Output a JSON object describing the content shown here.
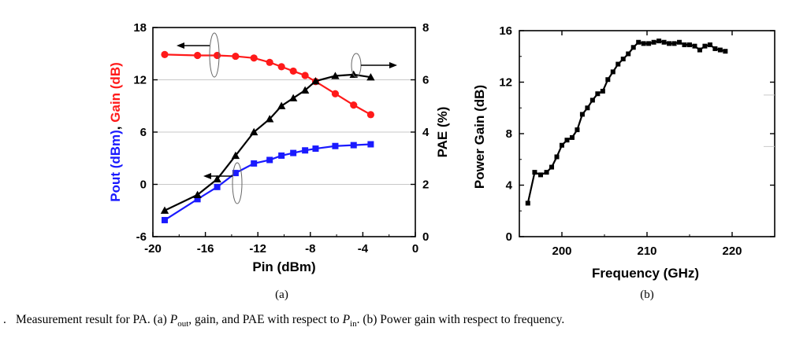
{
  "chart_data": [
    {
      "type": "line",
      "panel_label": "(a)",
      "xlabel": "Pin (dBm)",
      "xlim": [
        -20,
        0
      ],
      "xticks": [
        -20,
        -16,
        -12,
        -8,
        -4,
        0
      ],
      "ylim_left": [
        -6,
        18
      ],
      "yticks_left": [
        -6,
        0,
        6,
        12,
        18
      ],
      "ylabel_left_parts": [
        {
          "text": "Pout (dBm)",
          "color": "#1a1aff"
        },
        {
          "text": ", ",
          "color": "#000000"
        },
        {
          "text": "Gain (dB)",
          "color": "#ff1a1a"
        }
      ],
      "ylim_right": [
        0,
        8
      ],
      "yticks_right": [
        0,
        2,
        4,
        6,
        8
      ],
      "ylabel_right": "PAE (%)",
      "grid": false,
      "series": [
        {
          "axis": "left",
          "color": "#ff1a1a",
          "marker": "circle",
          "x": [
            -19.1,
            -16.6,
            -15.1,
            -13.7,
            -12.3,
            -11.1,
            -10.2,
            -9.3,
            -8.4,
            -7.6,
            -6.1,
            -4.7,
            -3.4
          ],
          "y": [
            14.9,
            14.8,
            14.8,
            14.7,
            14.5,
            14.0,
            13.5,
            13.0,
            12.5,
            11.8,
            10.4,
            9.1,
            8.0
          ]
        },
        {
          "axis": "left",
          "color": "#1a1aff",
          "marker": "square",
          "x": [
            -19.1,
            -16.6,
            -15.1,
            -13.7,
            -12.3,
            -11.1,
            -10.2,
            -9.3,
            -8.4,
            -7.6,
            -6.1,
            -4.7,
            -3.4
          ],
          "y": [
            -4.1,
            -1.7,
            -0.3,
            1.3,
            2.4,
            2.8,
            3.3,
            3.6,
            3.9,
            4.1,
            4.4,
            4.5,
            4.6
          ]
        },
        {
          "axis": "right",
          "color": "#000000",
          "marker": "triangle",
          "x": [
            -19.1,
            -16.6,
            -15.1,
            -13.7,
            -12.3,
            -11.1,
            -10.2,
            -9.3,
            -8.4,
            -7.6,
            -6.1,
            -4.7,
            -3.4
          ],
          "y": [
            1.0,
            1.6,
            2.2,
            3.1,
            4.0,
            4.5,
            5.0,
            5.3,
            5.6,
            5.95,
            6.15,
            6.2,
            6.1
          ]
        }
      ]
    },
    {
      "type": "line",
      "panel_label": "(b)",
      "xlabel": "Frequency (GHz)",
      "xlim": [
        195,
        225
      ],
      "xticks": [
        200,
        210,
        220
      ],
      "ylabel": "Power Gain (dB)",
      "ylim": [
        0,
        16
      ],
      "yticks": [
        0,
        4,
        8,
        12,
        16
      ],
      "grid": false,
      "series": [
        {
          "color": "#000000",
          "marker": "square",
          "x": [
            196,
            196.8,
            197.5,
            198.2,
            198.8,
            199.4,
            200,
            200.6,
            201.2,
            201.8,
            202.4,
            203,
            203.6,
            204.2,
            204.8,
            205.4,
            206,
            206.6,
            207.2,
            207.8,
            208.4,
            209,
            209.6,
            210.2,
            210.8,
            211.4,
            212,
            212.6,
            213.2,
            213.8,
            214.4,
            215,
            215.6,
            216.2,
            216.8,
            217.4,
            218,
            218.6,
            219.2
          ],
          "y": [
            2.6,
            5.0,
            4.8,
            5.0,
            5.4,
            6.2,
            7.1,
            7.5,
            7.7,
            8.3,
            9.5,
            10.0,
            10.6,
            11.1,
            11.3,
            12.2,
            12.8,
            13.4,
            13.8,
            14.2,
            14.7,
            15.1,
            15.0,
            15.0,
            15.1,
            15.2,
            15.1,
            15.0,
            15.0,
            15.1,
            14.9,
            14.9,
            14.8,
            14.5,
            14.8,
            14.9,
            14.6,
            14.5,
            14.4
          ]
        }
      ]
    }
  ],
  "caption": {
    "prefix": ".",
    "segments": [
      {
        "text": "Measurement result for PA. (a) ",
        "style": "normal"
      },
      {
        "text": "P",
        "style": "italic"
      },
      {
        "text": "out",
        "style": "sub"
      },
      {
        "text": ", gain, and PAE with respect to ",
        "style": "normal"
      },
      {
        "text": "P",
        "style": "italic"
      },
      {
        "text": "in",
        "style": "sub"
      },
      {
        "text": ". (b) Power gain with respect to frequency.",
        "style": "normal"
      }
    ]
  }
}
